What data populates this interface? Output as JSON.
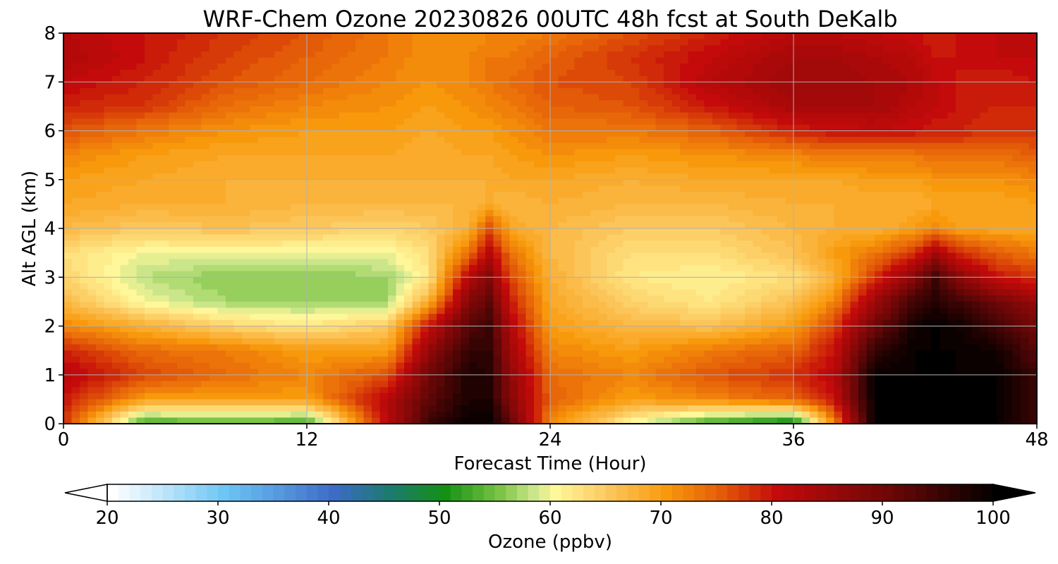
{
  "chart_data": {
    "type": "heatmap",
    "subtype": "filled-contour",
    "title": "WRF-Chem Ozone  20230826 00UTC 48h fcst at South DeKalb",
    "xlabel": "Forecast Time (Hour)",
    "ylabel": "Alt AGL (km)",
    "xlim": [
      0,
      48
    ],
    "ylim": [
      0,
      8
    ],
    "xticks": [
      0,
      12,
      24,
      36,
      48
    ],
    "yticks": [
      0,
      1,
      2,
      3,
      4,
      5,
      6,
      7,
      8
    ],
    "grid": true,
    "colorbar": {
      "label": "Ozone  (ppbv)",
      "orientation": "horizontal",
      "placement": "bottom",
      "range": [
        20,
        100
      ],
      "step": 1,
      "extend": "both",
      "ticks": [
        20,
        30,
        40,
        50,
        60,
        70,
        80,
        90,
        100
      ],
      "colormap_stops": [
        [
          20,
          "#ffffff"
        ],
        [
          30,
          "#6ec6f5"
        ],
        [
          40,
          "#3d6bc7"
        ],
        [
          45,
          "#1c7a70"
        ],
        [
          50,
          "#149114"
        ],
        [
          55,
          "#7cc445"
        ],
        [
          58,
          "#cbe68a"
        ],
        [
          60,
          "#fff79a"
        ],
        [
          65,
          "#fcc55a"
        ],
        [
          70,
          "#f8990c"
        ],
        [
          75,
          "#e35a08"
        ],
        [
          80,
          "#c40a0a"
        ],
        [
          90,
          "#6e0707"
        ],
        [
          100,
          "#000000"
        ]
      ]
    },
    "x": [
      0,
      4,
      8,
      12,
      16,
      18,
      20,
      21,
      22,
      24,
      28,
      32,
      36,
      38,
      40,
      42,
      43,
      44,
      46,
      48
    ],
    "y": [
      0,
      0.5,
      1,
      1.5,
      2,
      2.5,
      3,
      3.5,
      4,
      4.5,
      5,
      5.5,
      6,
      6.5,
      7,
      7.5,
      8
    ],
    "z": [
      [
        78,
        52,
        54,
        52,
        82,
        95,
        100,
        100,
        92,
        72,
        60,
        52,
        48,
        72,
        100,
        100,
        100,
        100,
        100,
        95
      ],
      [
        80,
        70,
        70,
        70,
        82,
        92,
        98,
        98,
        88,
        75,
        70,
        72,
        75,
        80,
        100,
        100,
        100,
        100,
        100,
        95
      ],
      [
        82,
        77,
        74,
        72,
        76,
        90,
        98,
        97,
        87,
        74,
        72,
        76,
        78,
        82,
        100,
        100,
        100,
        100,
        100,
        95
      ],
      [
        79,
        74,
        73,
        70,
        70,
        86,
        96,
        96,
        85,
        72,
        70,
        73,
        75,
        80,
        96,
        100,
        100,
        100,
        99,
        92
      ],
      [
        72,
        68,
        64,
        62,
        65,
        80,
        93,
        95,
        83,
        70,
        67,
        66,
        70,
        77,
        90,
        99,
        100,
        99,
        95,
        90
      ],
      [
        67,
        60,
        57,
        57,
        57,
        68,
        88,
        92,
        80,
        69,
        64,
        62,
        66,
        72,
        85,
        95,
        97,
        95,
        90,
        85
      ],
      [
        64,
        58,
        56,
        56,
        57,
        62,
        83,
        88,
        77,
        68,
        62,
        61,
        63,
        68,
        78,
        88,
        95,
        88,
        80,
        78
      ],
      [
        63,
        60,
        60,
        60,
        60,
        63,
        74,
        82,
        74,
        67,
        63,
        63,
        66,
        70,
        73,
        78,
        84,
        79,
        75,
        73
      ],
      [
        67,
        65,
        66,
        65,
        64,
        65,
        68,
        76,
        69,
        67,
        65,
        65,
        67,
        68,
        68,
        70,
        72,
        70,
        69,
        69
      ],
      [
        69,
        68,
        68,
        67,
        67,
        67,
        67,
        68,
        67,
        68,
        67,
        67,
        68,
        68,
        68,
        68,
        69,
        69,
        69,
        70
      ],
      [
        70,
        69,
        68,
        68,
        68,
        68,
        68,
        68,
        69,
        69,
        68,
        69,
        69,
        69,
        70,
        70,
        71,
        71,
        71,
        72
      ],
      [
        72,
        70,
        69,
        69,
        69,
        68,
        69,
        69,
        70,
        71,
        70,
        71,
        72,
        73,
        73,
        73,
        74,
        74,
        74,
        75
      ],
      [
        76,
        73,
        71,
        70,
        70,
        69,
        70,
        70,
        71,
        73,
        73,
        75,
        79,
        80,
        81,
        80,
        79,
        79,
        78,
        78
      ],
      [
        79,
        78,
        74,
        72,
        71,
        70,
        71,
        72,
        73,
        75,
        76,
        80,
        84,
        84,
        84,
        82,
        81,
        80,
        79,
        79
      ],
      [
        81,
        79,
        76,
        74,
        72,
        71,
        72,
        73,
        74,
        76,
        77,
        82,
        85,
        85,
        84,
        83,
        81,
        80,
        79,
        80
      ],
      [
        83,
        80,
        77,
        75,
        73,
        71,
        72,
        73,
        73,
        75,
        78,
        81,
        84,
        84,
        83,
        82,
        80,
        80,
        81,
        81
      ],
      [
        82,
        80,
        78,
        76,
        73,
        71,
        71,
        72,
        72,
        73,
        76,
        79,
        82,
        82,
        81,
        80,
        79,
        80,
        81,
        81
      ]
    ]
  }
}
